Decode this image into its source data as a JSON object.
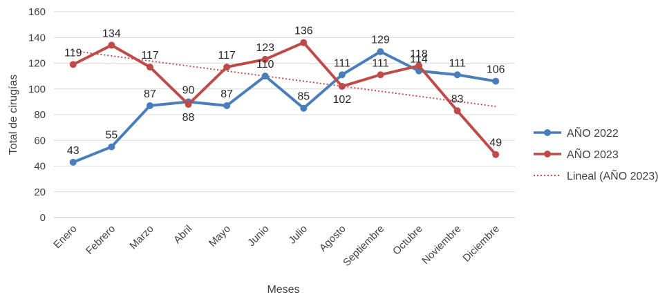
{
  "chart_data": {
    "type": "line",
    "categories": [
      "Enero",
      "Febrero",
      "Marzo",
      "Abril",
      "Mayo",
      "Junio",
      "Julio",
      "Agosto",
      "Septiembre",
      "Octubre",
      "Noviembre",
      "Diciembre"
    ],
    "series": [
      {
        "name": "AÑO 2022",
        "color": "#4a7ebb",
        "values": [
          43,
          55,
          87,
          90,
          87,
          110,
          85,
          111,
          129,
          114,
          111,
          106
        ],
        "labels": [
          "43",
          "55",
          "87",
          "90",
          "87",
          "110",
          "85",
          "111",
          "129",
          "114",
          "111",
          "106"
        ]
      },
      {
        "name": "AÑO 2023",
        "color": "#be4b48",
        "values": [
          119,
          134,
          117,
          88,
          117,
          123,
          136,
          102,
          111,
          118,
          83,
          49
        ],
        "labels": [
          "119",
          "134",
          "117",
          "88",
          "117",
          "123",
          "136",
          "102",
          "111",
          "118",
          "83",
          "49"
        ]
      }
    ],
    "trendline": {
      "name": "Lineal (AÑO 2023)",
      "color": "#c0504d",
      "style": "dotted",
      "of_series": "AÑO 2023",
      "start": 129.6,
      "end": 86.4
    },
    "xlabel": "Meses",
    "ylabel": "Total de cirugías",
    "ylim": [
      0,
      160
    ],
    "yticks": [
      "0",
      "20",
      "40",
      "60",
      "80",
      "100",
      "120",
      "140",
      "160"
    ],
    "grid": true,
    "legend": "right"
  }
}
